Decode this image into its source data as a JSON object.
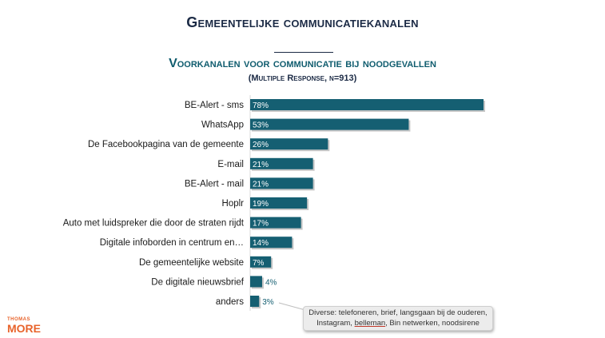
{
  "page": {
    "title": "Gemeentelijke communicatiekanalen",
    "subtitle": "Voorkanalen voor communicatie bij noodgevallen",
    "note": "(Multiple Response, n=913)"
  },
  "callout": {
    "line1": "Diverse: telefoneren, brief, langsgaan bij de ouderen,",
    "line2_pre": "Instagram, ",
    "line2_ul": "belleman",
    "line2_post": ", Bin netwerken, noodsirene"
  },
  "logo": {
    "line1": "THOMAS",
    "line2": "MORE"
  },
  "colors": {
    "bar": "#155f72",
    "label_text": "#ffffff",
    "accent": "#e8632b"
  },
  "chart_data": {
    "type": "bar",
    "orientation": "horizontal",
    "categories": [
      "BE-Alert - sms",
      "WhatsApp",
      "De Facebookpagina van de gemeente",
      "E-mail",
      "BE-Alert - mail",
      "Hoplr",
      "Auto met luidspreker die door de straten rijdt",
      "Digitale infoborden in centrum en…",
      "De gemeentelijke website",
      "De digitale nieuwsbrief",
      "anders"
    ],
    "values": [
      78,
      53,
      26,
      21,
      21,
      19,
      17,
      14,
      7,
      4,
      3
    ],
    "data_labels": [
      "78%",
      "53%",
      "26%",
      "21%",
      "21%",
      "19%",
      "17%",
      "14%",
      "7%",
      "4%",
      "3%"
    ],
    "unit": "%",
    "xlim": [
      0,
      78
    ],
    "title": "Voorkanalen voor communicatie bij noodgevallen",
    "xlabel": "",
    "ylabel": "",
    "grid": false,
    "legend": "none"
  }
}
